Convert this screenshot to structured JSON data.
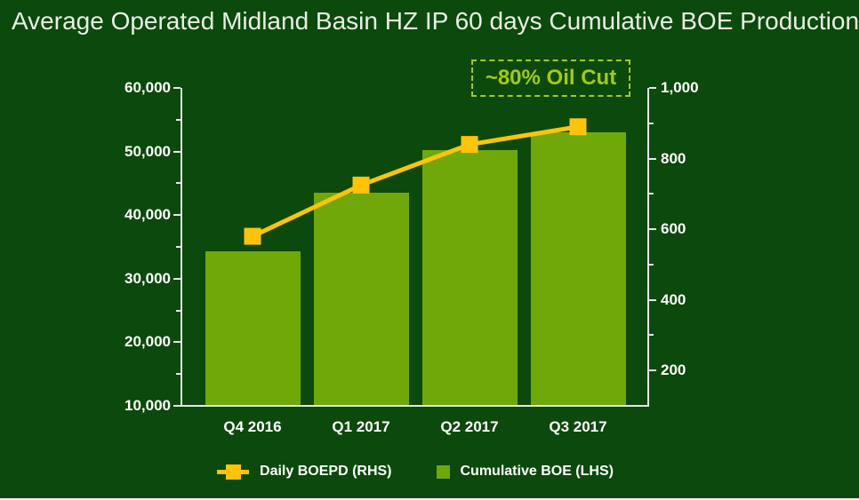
{
  "slide": {
    "title": "Average Operated Midland Basin HZ IP 60 days Cumulative BOE Production"
  },
  "colors": {
    "background": "#0c490c",
    "bar": "#70a80a",
    "line": "#ffc408",
    "annotation": "#a3cc0a",
    "axis_text": "#ffffff",
    "title_text": "#e9efe5"
  },
  "chart_data": {
    "type": "combo",
    "title": "Average Operated Midland Basin HZ IP 60 days Cumulative BOE Production",
    "categories": [
      "Q4 2016",
      "Q1 2017",
      "Q2 2017",
      "Q3 2017"
    ],
    "series": [
      {
        "name": "Cumulative BOE (LHS)",
        "type": "bar",
        "axis": "left",
        "color": "#70a80a",
        "values": [
          34300,
          43500,
          50200,
          53000
        ]
      },
      {
        "name": "Daily BOEPD (RHS)",
        "type": "line",
        "axis": "right",
        "color": "#ffc408",
        "marker": "square",
        "values": [
          580,
          725,
          840,
          890
        ]
      }
    ],
    "left_axis": {
      "min": 10000,
      "max": 60000,
      "tick_step": 10000,
      "minor_step": 5000,
      "tick_labels": [
        "10,000",
        "20,000",
        "30,000",
        "40,000",
        "50,000",
        "60,000"
      ]
    },
    "right_axis": {
      "min": 100,
      "max": 1000,
      "tick_step": 200,
      "minor_step": 100,
      "tick_labels": [
        "200",
        "400",
        "600",
        "800",
        "1,000"
      ]
    },
    "annotation": "~80% Oil Cut",
    "legend_position": "bottom",
    "grid": false
  }
}
